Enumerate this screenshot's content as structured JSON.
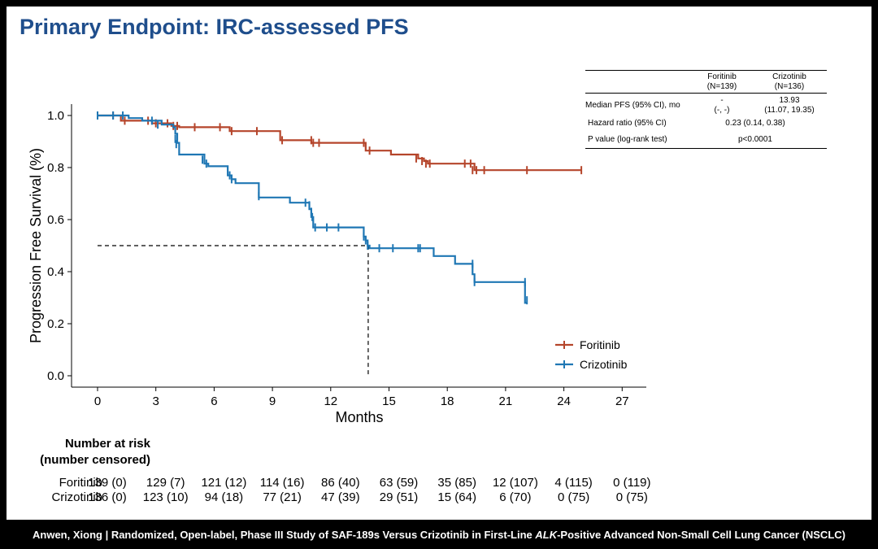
{
  "slide_title": "Primary Endpoint: IRC-assessed PFS",
  "footer": {
    "before": "Anwen, Xiong | Randomized, Open-label, Phase III Study of SAF-189s Versus Crizotinib in First-Line ",
    "italic": "ALK",
    "after": "-Positive Advanced Non-Small Cell Lung Cancer (NSCLC)"
  },
  "summary_table": {
    "col1_name": "Foritinib",
    "col1_n": "(N=139)",
    "col2_name": "Crizotinib",
    "col2_n": "(N=136)",
    "row1_label": "Median PFS (95% CI), mo",
    "row1_col1_a": "-",
    "row1_col1_b": "(-, -)",
    "row1_col2_a": "13.93",
    "row1_col2_b": "(11.07, 19.35)",
    "row2_label": "Hazard ratio (95% CI)",
    "row2_value": "0.23 (0.14, 0.38)",
    "row3_label": "P value (log-rank test)",
    "row3_value": "p<0.0001"
  },
  "risk_table": {
    "title_line1": "Number at risk",
    "title_line2": "(number censored)",
    "rows": [
      {
        "label": "Foritinib",
        "values": [
          "139 (0)",
          "129 (7)",
          "121 (12)",
          "114 (16)",
          "86 (40)",
          "63 (59)",
          "35 (85)",
          "12 (107)",
          "4 (115)",
          "0 (119)"
        ]
      },
      {
        "label": "Crizotinib",
        "values": [
          "136 (0)",
          "123 (10)",
          "94 (18)",
          "77 (21)",
          "47 (39)",
          "29 (51)",
          "15 (64)",
          "6 (70)",
          "0 (75)",
          "0 (75)"
        ]
      }
    ]
  },
  "chart_data": {
    "type": "line",
    "title": "",
    "xlabel": "Months",
    "ylabel": "Progression Free Survival (%)",
    "xlim": [
      0,
      27
    ],
    "ylim": [
      0,
      1.0
    ],
    "xticks": [
      "0",
      "3",
      "6",
      "9",
      "12",
      "15",
      "18",
      "21",
      "24",
      "27"
    ],
    "yticks": [
      "0.0",
      "0.2",
      "0.4",
      "0.6",
      "0.8",
      "1.0"
    ],
    "step": true,
    "legend": "bottom-right",
    "median_reference": {
      "y": 0.5,
      "x": 13.93
    },
    "series": [
      {
        "name": "Foritinib",
        "color": "#b5452b",
        "steps": [
          [
            0,
            1.0
          ],
          [
            1.2,
            0.98
          ],
          [
            2.8,
            0.97
          ],
          [
            3.8,
            0.96
          ],
          [
            4.2,
            0.955
          ],
          [
            6.8,
            0.94
          ],
          [
            9.4,
            0.905
          ],
          [
            11,
            0.895
          ],
          [
            13.8,
            0.865
          ],
          [
            15.1,
            0.85
          ],
          [
            16.5,
            0.835
          ],
          [
            16.8,
            0.825
          ],
          [
            17,
            0.815
          ],
          [
            19.4,
            0.79
          ],
          [
            24.9,
            0.79
          ]
        ],
        "censored": [
          [
            0.8,
            1.0
          ],
          [
            1.4,
            0.98
          ],
          [
            2.6,
            0.98
          ],
          [
            3.0,
            0.97
          ],
          [
            3.6,
            0.97
          ],
          [
            3.9,
            0.96
          ],
          [
            4.1,
            0.96
          ],
          [
            5,
            0.955
          ],
          [
            6.3,
            0.955
          ],
          [
            6.9,
            0.94
          ],
          [
            8.2,
            0.94
          ],
          [
            9.5,
            0.905
          ],
          [
            11,
            0.905
          ],
          [
            11.1,
            0.895
          ],
          [
            11.4,
            0.895
          ],
          [
            13.7,
            0.895
          ],
          [
            14,
            0.865
          ],
          [
            16.4,
            0.835
          ],
          [
            16.7,
            0.825
          ],
          [
            16.9,
            0.815
          ],
          [
            17.1,
            0.815
          ],
          [
            18.9,
            0.815
          ],
          [
            19.2,
            0.815
          ],
          [
            19.3,
            0.79
          ],
          [
            19.5,
            0.79
          ],
          [
            19.9,
            0.79
          ],
          [
            22.1,
            0.79
          ],
          [
            24.9,
            0.79
          ]
        ]
      },
      {
        "name": "Crizotinib",
        "color": "#1f77b4",
        "steps": [
          [
            0,
            1.0
          ],
          [
            1.6,
            0.99
          ],
          [
            2.3,
            0.98
          ],
          [
            3.3,
            0.965
          ],
          [
            3.9,
            0.955
          ],
          [
            4.0,
            0.93
          ],
          [
            4.1,
            0.895
          ],
          [
            4.2,
            0.85
          ],
          [
            5.5,
            0.815
          ],
          [
            5.7,
            0.805
          ],
          [
            6.7,
            0.77
          ],
          [
            6.9,
            0.755
          ],
          [
            7.1,
            0.74
          ],
          [
            8.3,
            0.685
          ],
          [
            9.9,
            0.665
          ],
          [
            10.9,
            0.64
          ],
          [
            11.0,
            0.61
          ],
          [
            11.1,
            0.57
          ],
          [
            13.7,
            0.535
          ],
          [
            13.8,
            0.52
          ],
          [
            13.9,
            0.5
          ],
          [
            14.0,
            0.49
          ],
          [
            16.6,
            0.49
          ],
          [
            17.3,
            0.46
          ],
          [
            18.4,
            0.43
          ],
          [
            19.3,
            0.39
          ],
          [
            19.4,
            0.36
          ],
          [
            22.0,
            0.28
          ],
          [
            22.1,
            0.28
          ]
        ],
        "censored": [
          [
            0,
            1.0
          ],
          [
            0.8,
            1.0
          ],
          [
            1.3,
            1.0
          ],
          [
            2.8,
            0.98
          ],
          [
            3.1,
            0.965
          ],
          [
            4.0,
            0.91
          ],
          [
            4.05,
            0.89
          ],
          [
            5.4,
            0.83
          ],
          [
            5.6,
            0.815
          ],
          [
            6.8,
            0.77
          ],
          [
            6.9,
            0.755
          ],
          [
            8.3,
            0.69
          ],
          [
            10.7,
            0.665
          ],
          [
            10.9,
            0.655
          ],
          [
            11.0,
            0.63
          ],
          [
            11.05,
            0.61
          ],
          [
            11.2,
            0.57
          ],
          [
            11.8,
            0.57
          ],
          [
            12.4,
            0.57
          ],
          [
            13.7,
            0.535
          ],
          [
            13.8,
            0.52
          ],
          [
            13.9,
            0.5
          ],
          [
            14.5,
            0.49
          ],
          [
            15.2,
            0.49
          ],
          [
            16.5,
            0.49
          ],
          [
            16.6,
            0.49
          ],
          [
            19.3,
            0.43
          ],
          [
            19.4,
            0.36
          ],
          [
            22.0,
            0.36
          ],
          [
            22.1,
            0.29
          ]
        ]
      }
    ]
  }
}
